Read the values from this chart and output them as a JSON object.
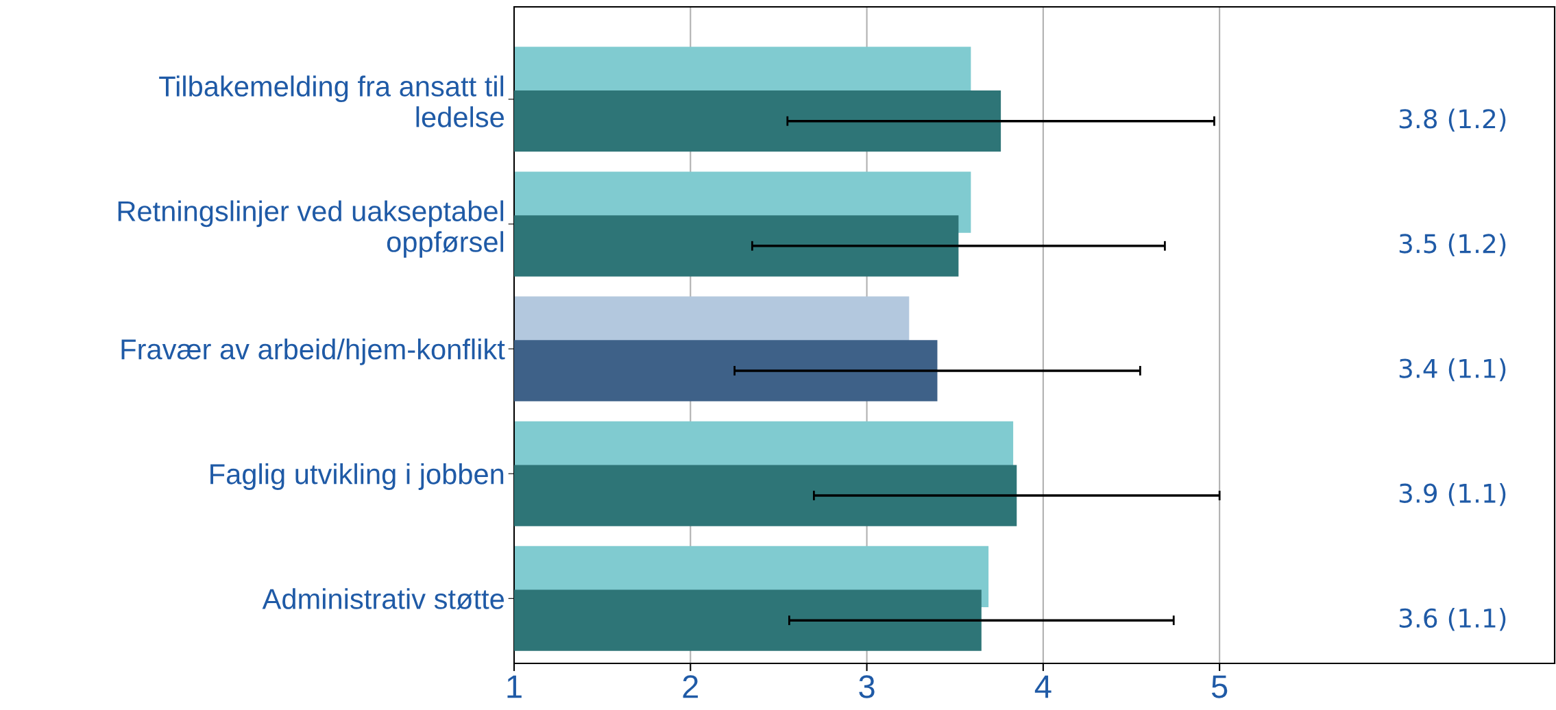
{
  "chart_data": {
    "type": "bar",
    "orientation": "horizontal",
    "categories": [
      "Tilbakemelding fra ansatt til\nledelse",
      "Retningslinjer ved uakseptabel\noppførsel",
      "Fravær av arbeid/hjem-konflikt",
      "Faglig utvikling i jobben",
      "Administrativ støtte"
    ],
    "series": [
      {
        "colors": [
          "#80cbd0",
          "#80cbd0",
          "#b3c8de",
          "#80cbd0",
          "#80cbd0"
        ],
        "values": [
          3.59,
          3.59,
          3.24,
          3.83,
          3.69
        ]
      },
      {
        "colors": [
          "#2e7577",
          "#2e7577",
          "#3e6188",
          "#2e7577",
          "#2e7577"
        ],
        "values": [
          3.76,
          3.52,
          3.4,
          3.85,
          3.65
        ],
        "errors": [
          1.21,
          1.17,
          1.15,
          1.15,
          1.09
        ],
        "value_labels": [
          "3.8 (1.2)",
          "3.5 (1.2)",
          "3.4 (1.1)",
          "3.9 (1.1)",
          "3.6 (1.1)"
        ]
      }
    ],
    "xlim": [
      1,
      6.9
    ],
    "xticks": [
      1,
      2,
      3,
      4,
      5
    ],
    "grid": "x"
  }
}
